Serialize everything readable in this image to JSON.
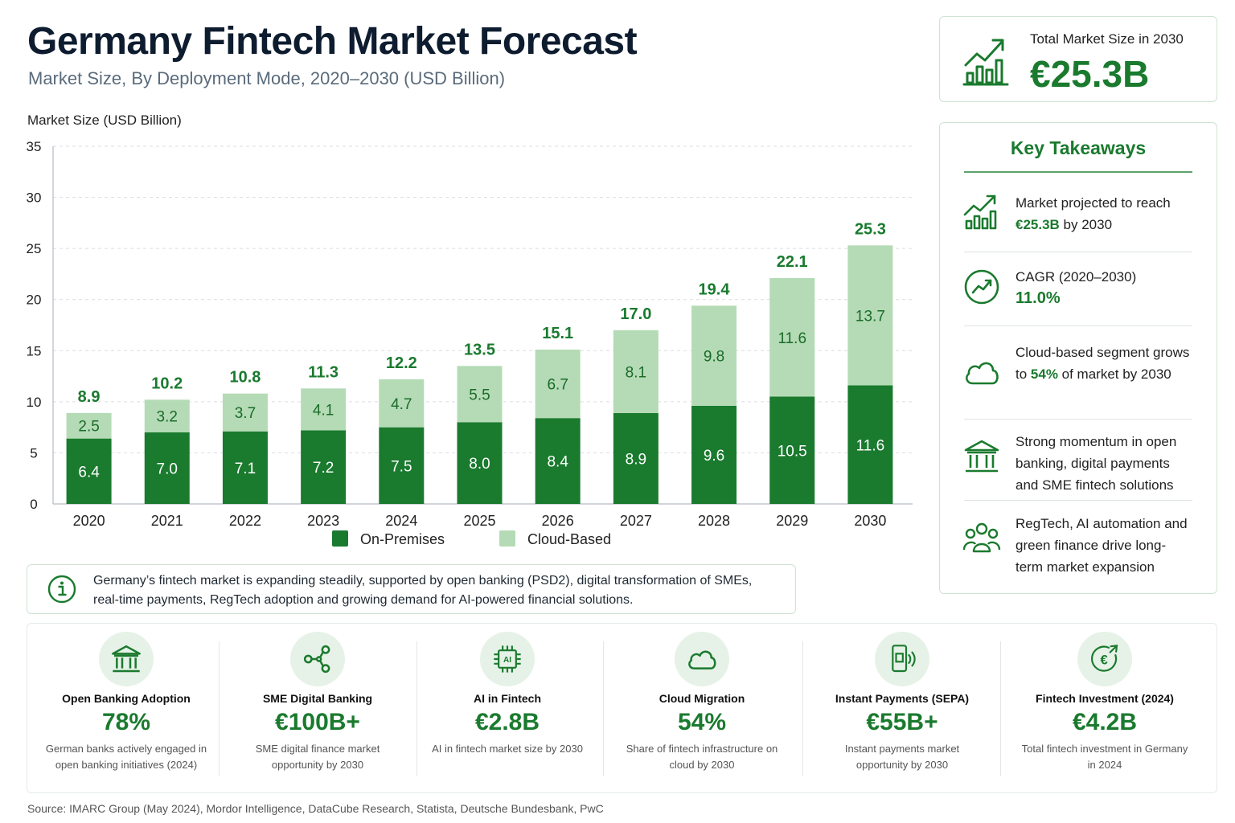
{
  "header": {
    "title": "Germany Fintech Market Forecast",
    "subtitle": "Market Size, By Deployment Mode, 2020–2030 (USD Billion)"
  },
  "chart_data": {
    "type": "bar",
    "stacked": true,
    "ylabel": "Market Size (USD Billion)",
    "ylim": [
      0,
      35
    ],
    "yticks": [
      0,
      5,
      10,
      15,
      20,
      25,
      30,
      35
    ],
    "grid": true,
    "legend_position": "bottom",
    "categories": [
      "2020",
      "2021",
      "2022",
      "2023",
      "2024",
      "2025",
      "2026",
      "2027",
      "2028",
      "2029",
      "2030"
    ],
    "series": [
      {
        "name": "On-Premises",
        "color": "#1a7a2e",
        "values": [
          6.4,
          7.0,
          7.1,
          7.2,
          7.5,
          8.0,
          8.4,
          8.9,
          9.6,
          10.5,
          11.6
        ],
        "labels": [
          "6.4",
          "7.0",
          "7.1",
          "7.2",
          "7.5",
          "8.0",
          "8.4",
          "8.9",
          "9.6",
          "10.5",
          "11.6"
        ]
      },
      {
        "name": "Cloud-Based",
        "color": "#b4dbb5",
        "values": [
          2.5,
          3.2,
          3.7,
          4.1,
          4.7,
          5.5,
          6.7,
          8.1,
          9.8,
          11.6,
          13.7
        ],
        "labels": [
          "2.5",
          "3.2",
          "3.7",
          "4.1",
          "4.7",
          "5.5",
          "6.7",
          "8.1",
          "9.8",
          "11.6",
          "13.7"
        ]
      }
    ],
    "totals": [
      8.9,
      10.2,
      10.8,
      11.3,
      12.2,
      13.5,
      15.1,
      17.0,
      19.4,
      22.1,
      25.3
    ],
    "total_labels": [
      "8.9",
      "10.2",
      "10.8",
      "11.3",
      "12.2",
      "13.5",
      "15.1",
      "17.0",
      "19.4",
      "22.1",
      "25.3"
    ]
  },
  "total_card": {
    "label": "Total Market Size in 2030",
    "value": "€25.3B",
    "icon": "growth-chart-icon"
  },
  "takeaways": {
    "title": "Key Takeaways",
    "items": [
      {
        "icon": "growth-chart-icon",
        "pre": "Market projected to reach ",
        "highlight": "€25.3B",
        "post": " by 2030"
      },
      {
        "icon": "trend-gauge-icon",
        "pre": "CAGR (2020–2030) ",
        "highlight": "11.0%",
        "post": ""
      },
      {
        "icon": "cloud-icon",
        "pre": "Cloud-based segment grows to ",
        "highlight": "54%",
        "post": " of market by 2030"
      },
      {
        "icon": "bank-icon",
        "pre": "Strong momentum in open banking, digital payments and SME fintech solutions",
        "highlight": "",
        "post": ""
      },
      {
        "icon": "people-icon",
        "pre": "RegTech, AI automation and green finance drive long-term market expansion",
        "highlight": "",
        "post": ""
      }
    ]
  },
  "info": {
    "icon": "info-icon",
    "line1": "Germany’s fintech market is expanding steadily, supported by open banking (PSD2), digital transformation of SMEs,",
    "line2": "real-time payments, RegTech adoption and growing demand for AI-powered financial solutions."
  },
  "metrics": [
    {
      "icon": "bank-icon",
      "name": "Open Banking Adoption",
      "value": "78%",
      "desc": "German banks actively engaged in open banking initiatives (2024)"
    },
    {
      "icon": "network-icon",
      "name": "SME Digital Banking",
      "value": "€100B+",
      "desc": "SME digital finance market opportunity by 2030"
    },
    {
      "icon": "ai-chip-icon",
      "name": "AI in Fintech",
      "value": "€2.8B",
      "desc": "AI in fintech market size by 2030"
    },
    {
      "icon": "cloud-icon",
      "name": "Cloud Migration",
      "value": "54%",
      "desc": "Share of fintech infrastructure on cloud by 2030"
    },
    {
      "icon": "contactless-phone-icon",
      "name": "Instant Payments (SEPA)",
      "value": "€55B+",
      "desc": "Instant payments market opportunity by 2030"
    },
    {
      "icon": "euro-growth-icon",
      "name": "Fintech Investment (2024)",
      "value": "€4.2B",
      "desc": "Total fintech investment in Germany in 2024"
    }
  ],
  "source": "Source: IMARC Group (May 2024), Mordor Intelligence, DataCube Research, Statista, Deutsche Bundesbank, PwC"
}
